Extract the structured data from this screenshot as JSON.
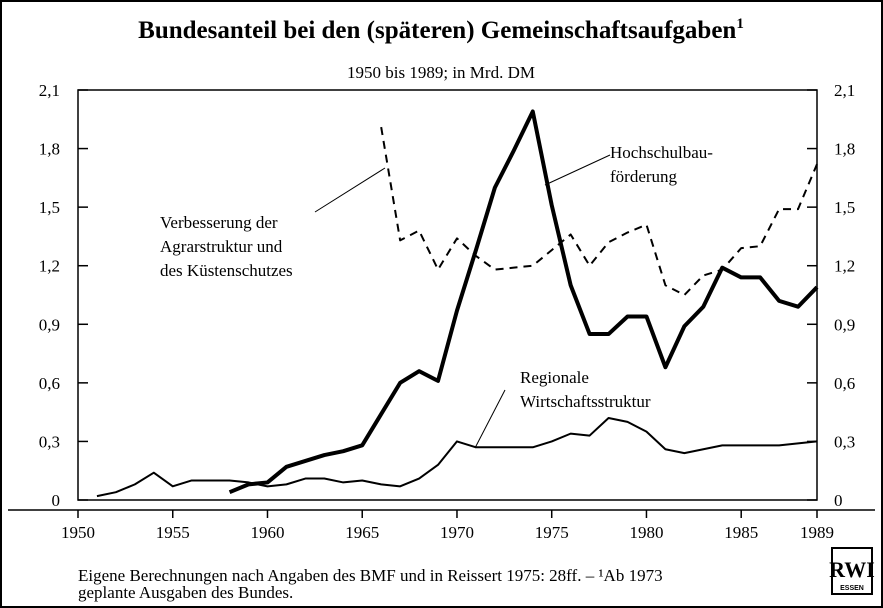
{
  "chart_data": {
    "type": "line",
    "title": "Bundesanteil bei den (späteren) Gemeinschaftsaufgaben",
    "title_note": "1",
    "subtitle": "1950 bis 1989; in Mrd. DM",
    "x": [
      1950,
      1951,
      1952,
      1953,
      1954,
      1955,
      1956,
      1957,
      1958,
      1959,
      1960,
      1961,
      1962,
      1963,
      1964,
      1965,
      1966,
      1967,
      1968,
      1969,
      1970,
      1971,
      1972,
      1973,
      1974,
      1975,
      1976,
      1977,
      1978,
      1979,
      1980,
      1981,
      1982,
      1983,
      1984,
      1985,
      1986,
      1987,
      1988,
      1989
    ],
    "xlim": [
      1950,
      1989
    ],
    "xticks": [
      1950,
      1955,
      1960,
      1965,
      1970,
      1975,
      1980,
      1985,
      1989
    ],
    "ylim": [
      0,
      2.1
    ],
    "yticks": [
      0,
      {
        "value": 0.3,
        "label": "0,3"
      },
      {
        "value": 0.6,
        "label": "0,6"
      },
      {
        "value": 0.9,
        "label": "0,9"
      },
      {
        "value": 1.2,
        "label": "1,2"
      },
      {
        "value": 1.5,
        "label": "1,5"
      },
      {
        "value": 1.8,
        "label": "1,8"
      },
      {
        "value": 2.1,
        "label": "2,1"
      }
    ],
    "y2lim": [
      0,
      2.1
    ],
    "y2ticks": [
      0,
      {
        "value": 0.3,
        "label": "0,3"
      },
      {
        "value": 0.6,
        "label": "0,6"
      },
      {
        "value": 0.9,
        "label": "0,9"
      },
      {
        "value": 1.2,
        "label": "1,2"
      },
      {
        "value": 1.5,
        "label": "1,5"
      },
      {
        "value": 1.8,
        "label": "1,8"
      },
      {
        "value": 2.1,
        "label": "2,1"
      }
    ],
    "series": [
      {
        "color": "#000000",
        "width": 4,
        "dash": "none",
        "values": [
          null,
          null,
          null,
          null,
          null,
          null,
          null,
          null,
          0.04,
          0.08,
          0.09,
          0.17,
          0.2,
          0.23,
          0.25,
          0.28,
          0.44,
          0.6,
          0.66,
          0.61,
          0.97,
          1.28,
          1.6,
          1.79,
          1.99,
          1.51,
          1.1,
          0.85,
          0.85,
          0.94,
          0.94,
          0.68,
          0.89,
          0.99,
          1.19,
          1.14,
          1.14,
          1.02,
          0.99,
          1.09
        ]
      },
      {
        "color": "#000000",
        "width": 2,
        "dash": "8 6",
        "values": [
          null,
          null,
          null,
          null,
          null,
          null,
          null,
          null,
          null,
          null,
          null,
          null,
          null,
          null,
          null,
          null,
          1.91,
          1.33,
          1.38,
          1.18,
          1.34,
          1.25,
          1.18,
          1.19,
          1.2,
          1.28,
          1.36,
          1.2,
          1.32,
          1.37,
          1.41,
          1.1,
          1.05,
          1.15,
          1.18,
          1.29,
          1.3,
          1.49,
          1.49,
          1.72
        ]
      },
      {
        "color": "#000000",
        "width": 2,
        "dash": "none",
        "values": [
          null,
          0.02,
          0.04,
          0.08,
          0.14,
          0.07,
          0.1,
          0.1,
          0.1,
          0.09,
          0.07,
          0.08,
          0.11,
          0.11,
          0.09,
          0.1,
          0.08,
          0.07,
          0.11,
          0.18,
          0.3,
          0.27,
          0.27,
          0.27,
          0.27,
          0.3,
          0.34,
          0.33,
          0.42,
          0.4,
          0.35,
          0.26,
          0.24,
          0.26,
          0.28,
          0.28,
          0.28,
          0.28,
          0.29,
          0.3
        ]
      }
    ],
    "annotations": [
      {
        "lines": [
          "Hochschulbau-",
          "förderung"
        ]
      },
      {
        "lines": [
          "Verbesserung der",
          "Agrarstruktur und",
          "des Küstenschutzes"
        ]
      },
      {
        "lines": [
          "Regionale",
          "Wirtschaftsstruktur"
        ]
      }
    ],
    "footnote": [
      "Eigene Berechnungen nach Angaben des BMF und in Reissert 1975: 28ff. – ¹Ab 1973",
      "geplante Ausgaben des Bundes."
    ],
    "logo": [
      "RWI",
      "ESSEN"
    ]
  }
}
